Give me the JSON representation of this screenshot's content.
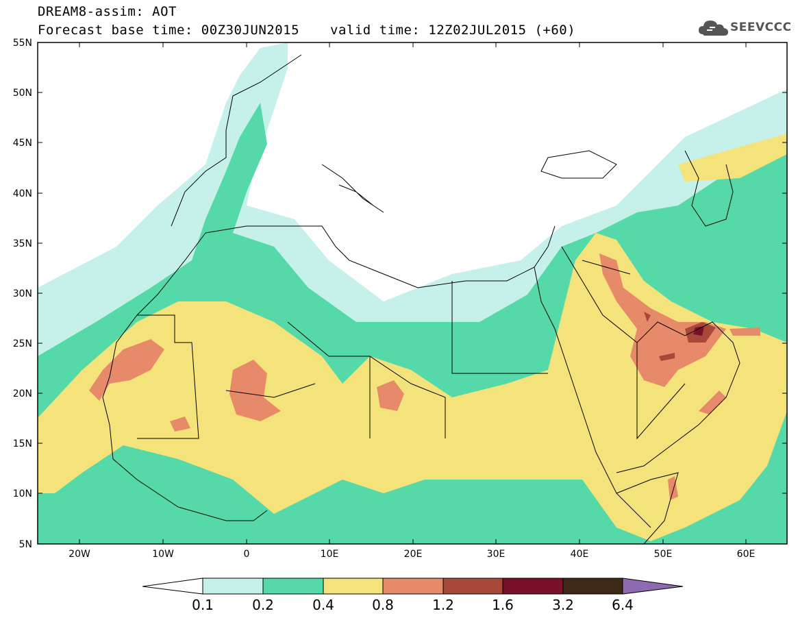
{
  "header": {
    "line1": "DREAM8-assim: AOT",
    "line2": "Forecast base time: 00Z30JUN2015",
    "line3": "valid time: 12Z02JUL2015 (+60)",
    "logo_text": "SEEVCCC"
  },
  "axes": {
    "lat_ticks": [
      "55N",
      "50N",
      "45N",
      "40N",
      "35N",
      "30N",
      "25N",
      "20N",
      "15N",
      "10N",
      "5N"
    ],
    "lon_ticks": [
      "20W",
      "10W",
      "0",
      "10E",
      "20E",
      "30E",
      "40E",
      "50E",
      "60E"
    ]
  },
  "legend": {
    "labels": [
      "0.1",
      "0.2",
      "0.4",
      "0.8",
      "1.2",
      "1.6",
      "3.2",
      "6.4"
    ],
    "colors": [
      "#ffffff",
      "#c6f0ea",
      "#56d9a9",
      "#f4e37a",
      "#e78a6a",
      "#a84838",
      "#78102a",
      "#3d2916",
      "#8e6bb0"
    ]
  },
  "colors": {
    "level1": "#c6f0ea",
    "level2": "#56d9a9",
    "level3": "#f4e37a",
    "level4": "#e78a6a",
    "level5": "#a84838",
    "level6": "#78102a"
  }
}
